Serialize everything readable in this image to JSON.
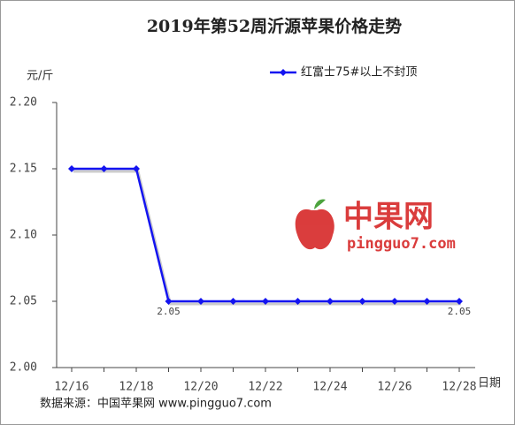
{
  "chart_data": {
    "type": "line",
    "title": "2019年第52周沂源苹果价格走势",
    "y_label": "元/斤",
    "x_label": "日期",
    "categories": [
      "12/16",
      null,
      "12/18",
      null,
      "12/20",
      null,
      "12/22",
      null,
      "12/24",
      null,
      "12/26",
      null,
      "12/28"
    ],
    "series": [
      {
        "name": "红富士75#以上不封顶",
        "color": "#1414f0",
        "values": [
          2.15,
          2.15,
          2.15,
          2.05,
          2.05,
          2.05,
          2.05,
          2.05,
          2.05,
          2.05,
          2.05,
          2.05,
          2.05
        ],
        "value_labels": [
          null,
          null,
          null,
          "2.05",
          null,
          null,
          null,
          null,
          null,
          null,
          null,
          null,
          "2.05"
        ]
      }
    ],
    "ylim": [
      2.0,
      2.2
    ],
    "yticks": [
      {
        "value": 2.0,
        "label": "2.00"
      },
      2.05,
      {
        "value": 2.1,
        "label": "2.10"
      },
      2.15,
      {
        "value": 2.2,
        "label": "2.20"
      }
    ],
    "source": "数据来源：中国苹果网 www.pingguo7.com",
    "watermark": {
      "brand": "中果网",
      "site": "pingguo7.com"
    }
  }
}
